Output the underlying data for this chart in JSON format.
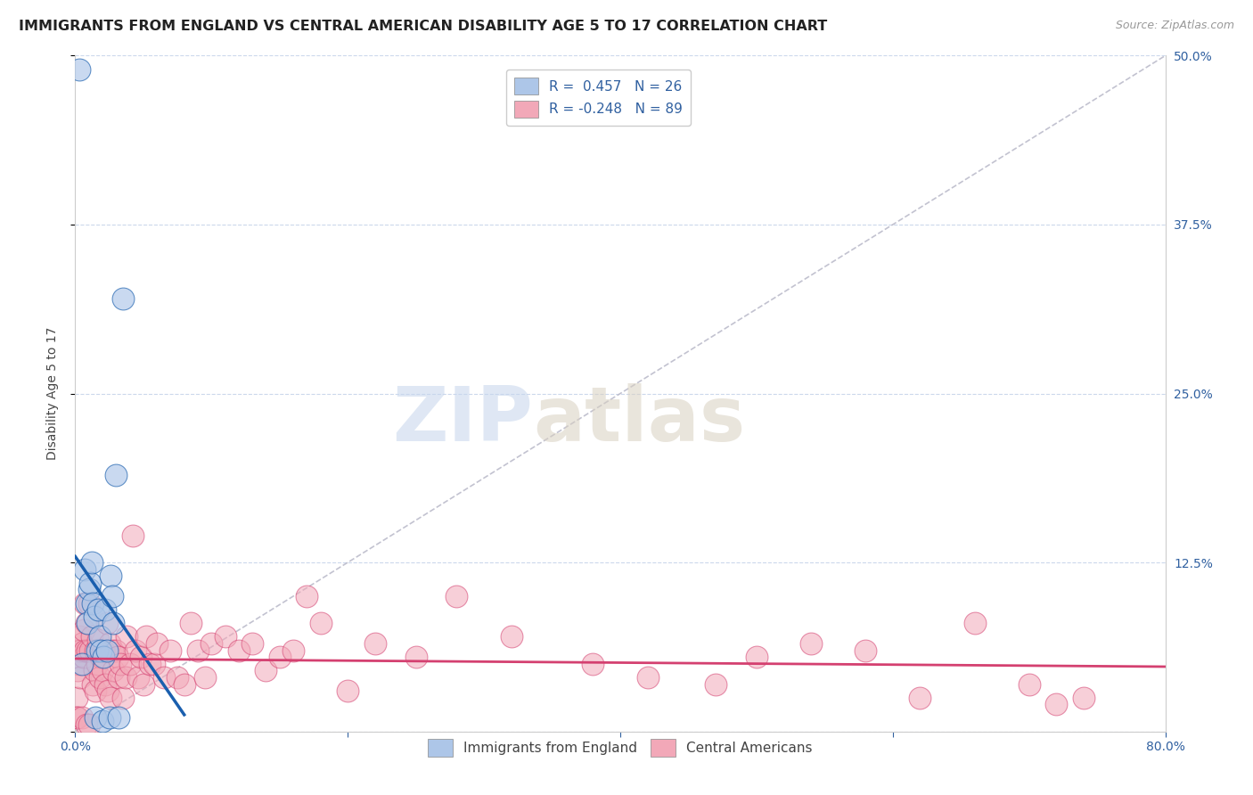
{
  "title": "IMMIGRANTS FROM ENGLAND VS CENTRAL AMERICAN DISABILITY AGE 5 TO 17 CORRELATION CHART",
  "source": "Source: ZipAtlas.com",
  "ylabel": "Disability Age 5 to 17",
  "xlim": [
    0,
    0.8
  ],
  "ylim": [
    0,
    0.5
  ],
  "england_R": 0.457,
  "england_N": 26,
  "central_R": -0.248,
  "central_N": 89,
  "england_color": "#adc6e8",
  "england_line_color": "#1a5fae",
  "central_color": "#f2a8b8",
  "central_line_color": "#d44070",
  "ref_line_color": "#b8b8c8",
  "background_color": "#ffffff",
  "grid_color": "#ccd8ec",
  "watermark_zip": "ZIP",
  "watermark_atlas": "atlas",
  "england_x": [
    0.003,
    0.005,
    0.007,
    0.008,
    0.009,
    0.01,
    0.011,
    0.012,
    0.013,
    0.014,
    0.015,
    0.016,
    0.017,
    0.018,
    0.019,
    0.02,
    0.021,
    0.022,
    0.023,
    0.025,
    0.026,
    0.027,
    0.028,
    0.03,
    0.032,
    0.035
  ],
  "england_y": [
    0.49,
    0.05,
    0.12,
    0.095,
    0.08,
    0.105,
    0.11,
    0.125,
    0.095,
    0.085,
    0.01,
    0.06,
    0.09,
    0.07,
    0.06,
    0.008,
    0.055,
    0.09,
    0.06,
    0.01,
    0.115,
    0.1,
    0.08,
    0.19,
    0.01,
    0.32
  ],
  "central_x": [
    0.001,
    0.001,
    0.001,
    0.002,
    0.002,
    0.002,
    0.003,
    0.003,
    0.004,
    0.004,
    0.005,
    0.005,
    0.006,
    0.006,
    0.007,
    0.007,
    0.008,
    0.008,
    0.009,
    0.01,
    0.01,
    0.011,
    0.012,
    0.013,
    0.014,
    0.015,
    0.015,
    0.016,
    0.017,
    0.018,
    0.019,
    0.02,
    0.021,
    0.022,
    0.023,
    0.024,
    0.025,
    0.026,
    0.027,
    0.028,
    0.03,
    0.031,
    0.032,
    0.033,
    0.035,
    0.037,
    0.038,
    0.04,
    0.042,
    0.044,
    0.046,
    0.048,
    0.05,
    0.052,
    0.055,
    0.058,
    0.06,
    0.065,
    0.07,
    0.075,
    0.08,
    0.085,
    0.09,
    0.095,
    0.1,
    0.11,
    0.12,
    0.13,
    0.14,
    0.15,
    0.16,
    0.17,
    0.18,
    0.2,
    0.22,
    0.25,
    0.28,
    0.32,
    0.38,
    0.42,
    0.47,
    0.5,
    0.54,
    0.58,
    0.62,
    0.66,
    0.7,
    0.72,
    0.74
  ],
  "central_y": [
    0.025,
    0.06,
    0.01,
    0.045,
    0.055,
    0.01,
    0.05,
    0.07,
    0.04,
    0.06,
    0.065,
    0.01,
    0.055,
    0.075,
    0.095,
    0.06,
    0.005,
    0.08,
    0.06,
    0.095,
    0.005,
    0.06,
    0.07,
    0.035,
    0.045,
    0.06,
    0.03,
    0.05,
    0.068,
    0.04,
    0.055,
    0.045,
    0.06,
    0.035,
    0.08,
    0.03,
    0.065,
    0.025,
    0.06,
    0.045,
    0.06,
    0.055,
    0.04,
    0.05,
    0.025,
    0.04,
    0.07,
    0.05,
    0.145,
    0.06,
    0.04,
    0.055,
    0.035,
    0.07,
    0.05,
    0.05,
    0.065,
    0.04,
    0.06,
    0.04,
    0.035,
    0.08,
    0.06,
    0.04,
    0.065,
    0.07,
    0.06,
    0.065,
    0.045,
    0.055,
    0.06,
    0.1,
    0.08,
    0.03,
    0.065,
    0.055,
    0.1,
    0.07,
    0.05,
    0.04,
    0.035,
    0.055,
    0.065,
    0.06,
    0.025,
    0.08,
    0.035,
    0.02,
    0.025
  ],
  "title_fontsize": 11.5,
  "source_fontsize": 9,
  "axis_label_fontsize": 10,
  "tick_fontsize": 10,
  "legend_fontsize": 11
}
